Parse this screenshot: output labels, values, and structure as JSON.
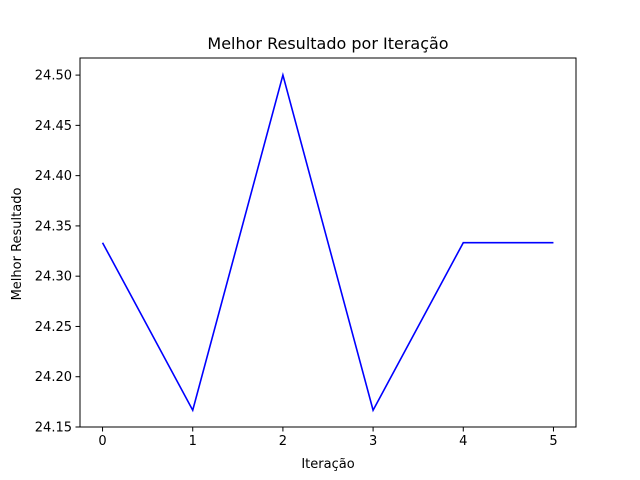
{
  "chart_data": {
    "type": "line",
    "title": "Melhor Resultado por Iteração",
    "xlabel": "Iteração",
    "ylabel": "Melhor Resultado",
    "x": [
      0,
      1,
      2,
      3,
      4,
      5
    ],
    "series": [
      {
        "values": [
          24.3333,
          24.1667,
          24.5,
          24.1667,
          24.3333,
          24.3333
        ],
        "color": "#0000ff"
      }
    ],
    "xlim": [
      -0.25,
      5.25
    ],
    "ylim": [
      24.15,
      24.517
    ],
    "xticks": [
      0,
      1,
      2,
      3,
      4,
      5
    ],
    "yticks": [
      24.15,
      24.2,
      24.25,
      24.3,
      24.35,
      24.4,
      24.45,
      24.5
    ],
    "ytick_labels": [
      "24.15",
      "24.20",
      "24.25",
      "24.30",
      "24.35",
      "24.40",
      "24.45",
      "24.50"
    ],
    "grid": false,
    "legend": "none"
  }
}
